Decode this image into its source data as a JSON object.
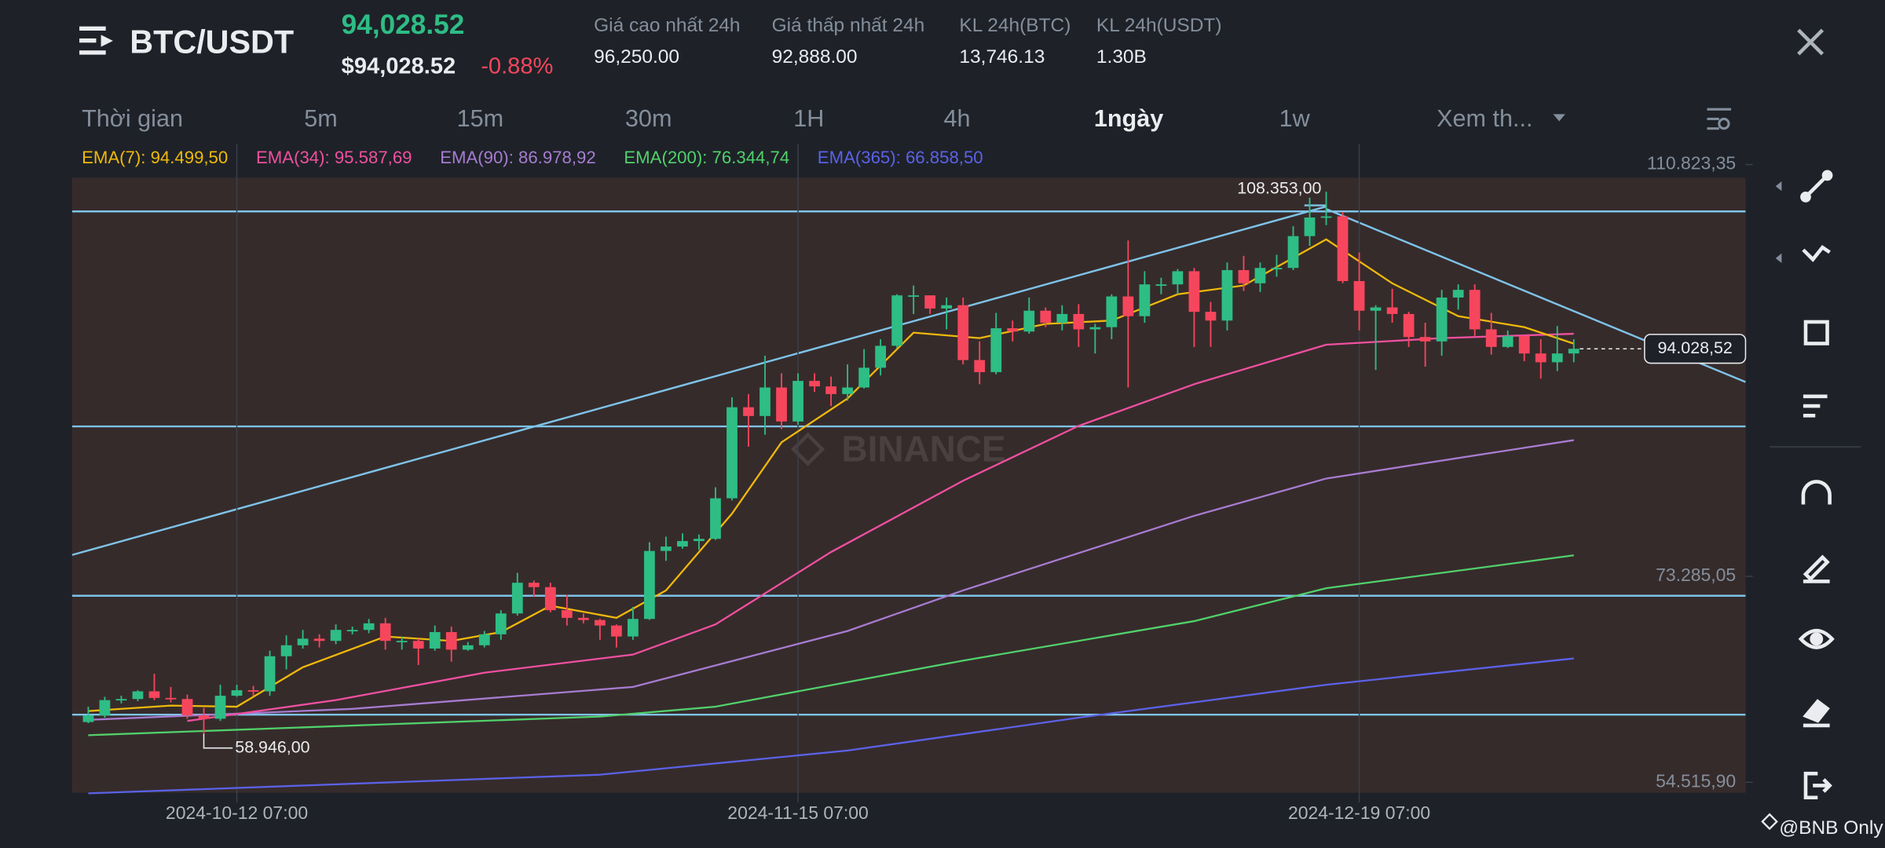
{
  "header": {
    "pair": "BTC/USDT",
    "price": "94,028.52",
    "price_usd": "$94,028.52",
    "change": "-0.88%",
    "stats": [
      {
        "label": "Giá cao nhất 24h",
        "value": "96,250.00"
      },
      {
        "label": "Giá thấp nhất 24h",
        "value": "92,888.00"
      },
      {
        "label": "KL 24h(BTC)",
        "value": "13,746.13"
      },
      {
        "label": "KL 24h(USDT)",
        "value": "1.30B"
      }
    ]
  },
  "timeframes": [
    "Thời gian",
    "5m",
    "15m",
    "30m",
    "1H",
    "4h",
    "1ngày",
    "1w",
    "Xem th..."
  ],
  "active_timeframe": 6,
  "chart_data": {
    "type": "candlestick",
    "up_color": "#2ebd85",
    "down_color": "#f6465d",
    "ylim": [
      53555,
      112685
    ],
    "yticks": [
      {
        "value": 110823.35,
        "label": "110.823,35"
      },
      {
        "value": 73285.05,
        "label": "73.285,05"
      },
      {
        "value": 54515.9,
        "label": "54.515,90"
      }
    ],
    "xticks": [
      {
        "value": 9,
        "label": "2024-10-12 07:00"
      },
      {
        "value": 43,
        "label": "2024-11-15 07:00"
      },
      {
        "value": 77,
        "label": "2024-12-19 07:00"
      }
    ],
    "grid": true,
    "candles": [
      [
        60000,
        61400,
        59900,
        60600
      ],
      [
        60600,
        62300,
        60400,
        62000
      ],
      [
        62000,
        62400,
        61700,
        62100
      ],
      [
        62100,
        62900,
        61900,
        62800
      ],
      [
        62800,
        64400,
        62000,
        62200
      ],
      [
        62200,
        63200,
        61800,
        62100
      ],
      [
        62100,
        62500,
        60300,
        60600
      ],
      [
        60600,
        61300,
        58946,
        60300
      ],
      [
        60300,
        63400,
        60100,
        62400
      ],
      [
        62400,
        63400,
        62300,
        62900
      ],
      [
        62900,
        63300,
        62400,
        62800
      ],
      [
        62800,
        66500,
        62400,
        66000
      ],
      [
        66000,
        67900,
        64800,
        67000
      ],
      [
        67000,
        68400,
        66700,
        67600
      ],
      [
        67600,
        68000,
        66800,
        67400
      ],
      [
        67400,
        68900,
        67100,
        68400
      ],
      [
        68400,
        68700,
        68000,
        68400
      ],
      [
        68400,
        69400,
        68100,
        69000
      ],
      [
        69000,
        69500,
        66600,
        67400
      ],
      [
        67400,
        67800,
        66600,
        67400
      ],
      [
        67400,
        67600,
        65200,
        66700
      ],
      [
        66700,
        68800,
        66500,
        68200
      ],
      [
        68200,
        68700,
        65500,
        66600
      ],
      [
        66600,
        67300,
        66500,
        67000
      ],
      [
        67000,
        68300,
        66800,
        68000
      ],
      [
        68000,
        70200,
        67500,
        69900
      ],
      [
        69900,
        73600,
        69700,
        72700
      ],
      [
        72700,
        72900,
        71400,
        72300
      ],
      [
        72300,
        72700,
        70000,
        70200
      ],
      [
        70200,
        71600,
        68800,
        69500
      ],
      [
        69500,
        69900,
        69000,
        69300
      ],
      [
        69300,
        69400,
        67500,
        68800
      ],
      [
        68800,
        68900,
        66800,
        67800
      ],
      [
        67800,
        70500,
        67500,
        69400
      ],
      [
        69400,
        76400,
        69300,
        75600
      ],
      [
        75600,
        76900,
        74700,
        76000
      ],
      [
        76000,
        77200,
        75800,
        76500
      ],
      [
        76500,
        77100,
        75700,
        76700
      ],
      [
        76700,
        81400,
        76600,
        80400
      ],
      [
        80400,
        89600,
        80200,
        88700
      ],
      [
        88700,
        89900,
        85100,
        87900
      ],
      [
        87900,
        93400,
        86200,
        90500
      ],
      [
        90500,
        91800,
        86700,
        87400
      ],
      [
        87400,
        91800,
        87100,
        91100
      ],
      [
        91100,
        91800,
        90100,
        90600
      ],
      [
        90600,
        91500,
        88800,
        89900
      ],
      [
        89900,
        92600,
        89300,
        90500
      ],
      [
        90500,
        94000,
        90400,
        92300
      ],
      [
        92300,
        94900,
        91600,
        94300
      ],
      [
        94300,
        99000,
        94100,
        98900
      ],
      [
        98900,
        99800,
        97200,
        98900
      ],
      [
        98900,
        98800,
        97200,
        97700
      ],
      [
        97700,
        98700,
        95800,
        98000
      ],
      [
        98000,
        98700,
        92600,
        93000
      ],
      [
        93000,
        94700,
        90800,
        91900
      ],
      [
        91900,
        97300,
        91700,
        95900
      ],
      [
        95900,
        96600,
        94700,
        95600
      ],
      [
        95600,
        98700,
        95400,
        97500
      ],
      [
        97500,
        97800,
        96000,
        96400
      ],
      [
        96400,
        98000,
        95700,
        97200
      ],
      [
        97200,
        98100,
        94200,
        95800
      ],
      [
        95800,
        96300,
        93600,
        96000
      ],
      [
        96000,
        99000,
        94900,
        98800
      ],
      [
        98800,
        103900,
        90500,
        97000
      ],
      [
        97000,
        101100,
        96400,
        99900
      ],
      [
        99900,
        100500,
        99000,
        99900
      ],
      [
        99900,
        101300,
        99000,
        101100
      ],
      [
        101100,
        101400,
        94200,
        97400
      ],
      [
        97400,
        98300,
        94200,
        96600
      ],
      [
        96600,
        101900,
        95700,
        101200
      ],
      [
        101200,
        102500,
        99300,
        100000
      ],
      [
        100000,
        101900,
        99200,
        101400
      ],
      [
        101400,
        102600,
        100600,
        101400
      ],
      [
        101400,
        105200,
        101200,
        104300
      ],
      [
        104300,
        107800,
        103400,
        106000
      ],
      [
        106000,
        108353,
        105300,
        106100
      ],
      [
        106100,
        106500,
        100000,
        100200
      ],
      [
        100200,
        102800,
        95700,
        97500
      ],
      [
        97500,
        98000,
        92100,
        97800
      ],
      [
        97800,
        99500,
        96400,
        97200
      ],
      [
        97200,
        97400,
        94200,
        95100
      ],
      [
        95100,
        96400,
        92400,
        94700
      ],
      [
        94700,
        99400,
        93400,
        98700
      ],
      [
        98700,
        99900,
        97600,
        99400
      ],
      [
        99400,
        99900,
        95200,
        95800
      ],
      [
        95800,
        97300,
        93500,
        94200
      ],
      [
        94200,
        95700,
        94100,
        95200
      ],
      [
        95200,
        95200,
        92900,
        93600
      ],
      [
        93600,
        94900,
        91300,
        92800
      ],
      [
        92800,
        96100,
        92000,
        93600
      ],
      [
        93600,
        94900,
        92800,
        94028.52
      ]
    ],
    "indicators": [
      {
        "label": "EMA(7): 94.499,50",
        "color": "#f0b90b",
        "points": [
          [
            0,
            61000
          ],
          [
            5,
            61500
          ],
          [
            9,
            61400
          ],
          [
            13,
            65000
          ],
          [
            18,
            67800
          ],
          [
            22,
            67400
          ],
          [
            25,
            68200
          ],
          [
            28,
            70600
          ],
          [
            32,
            69500
          ],
          [
            35,
            72000
          ],
          [
            39,
            79000
          ],
          [
            42,
            85500
          ],
          [
            46,
            89500
          ],
          [
            50,
            95500
          ],
          [
            54,
            95000
          ],
          [
            58,
            96300
          ],
          [
            62,
            96600
          ],
          [
            66,
            99000
          ],
          [
            70,
            99800
          ],
          [
            75,
            104000
          ],
          [
            79,
            100000
          ],
          [
            83,
            97000
          ],
          [
            87,
            96000
          ],
          [
            90,
            94500
          ]
        ]
      },
      {
        "label": "EMA(34): 95.587,69",
        "color": "#f050a0",
        "points": [
          [
            6,
            60100
          ],
          [
            15,
            62000
          ],
          [
            24,
            64500
          ],
          [
            33,
            66150
          ],
          [
            38,
            68900
          ],
          [
            45,
            75500
          ],
          [
            53,
            82000
          ],
          [
            60,
            87000
          ],
          [
            67,
            90800
          ],
          [
            75,
            94400
          ],
          [
            82,
            95000
          ],
          [
            90,
            95400
          ]
        ]
      },
      {
        "label": "EMA(90): 86.978,92",
        "color": "#a77cd1",
        "points": [
          [
            0,
            60200
          ],
          [
            16,
            61200
          ],
          [
            33,
            63200
          ],
          [
            46,
            68300
          ],
          [
            53,
            72000
          ],
          [
            67,
            78800
          ],
          [
            75,
            82200
          ],
          [
            90,
            85700
          ]
        ]
      },
      {
        "label": "EMA(200): 76.344,74",
        "color": "#51d16b",
        "points": [
          [
            0,
            58800
          ],
          [
            31,
            60500
          ],
          [
            38,
            61400
          ],
          [
            53,
            65600
          ],
          [
            67,
            69200
          ],
          [
            75,
            72200
          ],
          [
            90,
            75200
          ]
        ]
      },
      {
        "label": "EMA(365): 66.858,50",
        "color": "#5b62e8",
        "points": [
          [
            0,
            53500
          ],
          [
            31,
            55200
          ],
          [
            46,
            57400
          ],
          [
            60,
            60400
          ],
          [
            75,
            63400
          ],
          [
            90,
            65800
          ]
        ]
      }
    ],
    "annotations": [
      {
        "text": "108.353,00",
        "value": 108353,
        "index": 75
      },
      {
        "text": "58.946,00",
        "value": 58946,
        "index": 7
      }
    ],
    "last_price": {
      "value": 94028.52,
      "label": "94.028,52"
    }
  },
  "watermark": "BINANCE",
  "footer": "@BNB Only"
}
